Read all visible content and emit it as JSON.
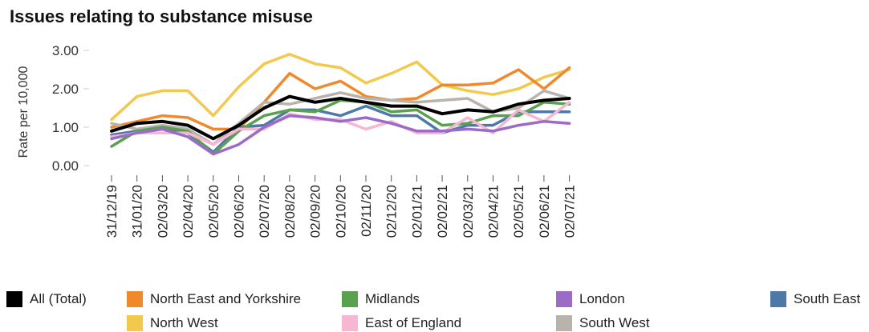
{
  "chart_data": {
    "type": "line",
    "title": "Issues relating to substance misuse",
    "ylabel": "Rate per 10,000",
    "xlabel": "",
    "ylim": [
      0,
      3
    ],
    "yticks": [
      "0.00",
      "1.00",
      "2.00",
      "3.00"
    ],
    "grid": false,
    "legend_position": "bottom",
    "categories": [
      "31/12/19",
      "31/01/20",
      "02/03/20",
      "02/04/20",
      "02/05/20",
      "02/06/20",
      "02/07/20",
      "02/08/20",
      "02/09/20",
      "02/10/20",
      "02/11/20",
      "02/12/20",
      "02/01/21",
      "02/02/21",
      "02/03/21",
      "02/04/21",
      "02/05/21",
      "02/06/21",
      "02/07/21"
    ],
    "series": [
      {
        "name": "North West",
        "color": "#f2c94c",
        "values": [
          1.2,
          1.8,
          1.95,
          1.95,
          1.3,
          2.05,
          2.65,
          2.9,
          2.65,
          2.55,
          2.15,
          2.4,
          2.7,
          2.1,
          1.95,
          1.85,
          2.0,
          2.3,
          2.5
        ]
      },
      {
        "name": "North East and Yorkshire",
        "color": "#f0892b",
        "values": [
          1.0,
          1.15,
          1.3,
          1.25,
          0.95,
          0.95,
          1.65,
          2.4,
          2.0,
          2.2,
          1.8,
          1.7,
          1.75,
          2.1,
          2.1,
          2.15,
          2.5,
          2.0,
          2.55
        ]
      },
      {
        "name": "South West",
        "color": "#b8b3ad",
        "values": [
          1.1,
          0.95,
          1.05,
          0.95,
          0.55,
          1.1,
          1.65,
          1.6,
          1.75,
          1.9,
          1.75,
          1.7,
          1.65,
          1.7,
          1.75,
          1.4,
          1.5,
          1.95,
          1.75
        ]
      },
      {
        "name": "South East",
        "color": "#4e79a7",
        "values": [
          0.8,
          0.9,
          0.95,
          0.85,
          0.35,
          1.0,
          1.05,
          1.45,
          1.45,
          1.3,
          1.55,
          1.3,
          1.3,
          0.85,
          1.05,
          1.05,
          1.4,
          1.4,
          1.4
        ]
      },
      {
        "name": "Midlands",
        "color": "#59a14f",
        "values": [
          0.5,
          0.9,
          1.0,
          0.9,
          0.3,
          0.9,
          1.3,
          1.45,
          1.4,
          1.7,
          1.65,
          1.4,
          1.45,
          1.05,
          1.1,
          1.3,
          1.3,
          1.65,
          1.6
        ]
      },
      {
        "name": "East of England",
        "color": "#f7b6d2",
        "values": [
          0.75,
          0.85,
          0.85,
          0.85,
          0.55,
          0.95,
          0.95,
          1.35,
          1.2,
          1.2,
          0.95,
          1.15,
          0.85,
          0.85,
          1.25,
          0.85,
          1.45,
          1.15,
          1.65
        ]
      },
      {
        "name": "London",
        "color": "#9b6cc7",
        "values": [
          0.7,
          0.85,
          0.95,
          0.75,
          0.3,
          0.55,
          1.0,
          1.3,
          1.25,
          1.15,
          1.25,
          1.1,
          0.9,
          0.9,
          0.95,
          0.9,
          1.05,
          1.15,
          1.1
        ]
      },
      {
        "name": "All (Total)",
        "color": "#000000",
        "values": [
          0.9,
          1.1,
          1.15,
          1.05,
          0.7,
          1.05,
          1.5,
          1.8,
          1.65,
          1.75,
          1.65,
          1.55,
          1.55,
          1.35,
          1.45,
          1.4,
          1.6,
          1.7,
          1.75
        ]
      }
    ],
    "legend": [
      {
        "name": "All (Total)",
        "color": "#000000"
      },
      {
        "name": "North East and Yorkshire",
        "color": "#f0892b"
      },
      {
        "name": "Midlands",
        "color": "#59a14f"
      },
      {
        "name": "London",
        "color": "#9b6cc7"
      },
      {
        "name": "South East",
        "color": "#4e79a7"
      },
      {
        "name": "North West",
        "color": "#f2c94c"
      },
      {
        "name": "East of England",
        "color": "#f7b6d2"
      },
      {
        "name": "South West",
        "color": "#b8b3ad"
      }
    ]
  }
}
